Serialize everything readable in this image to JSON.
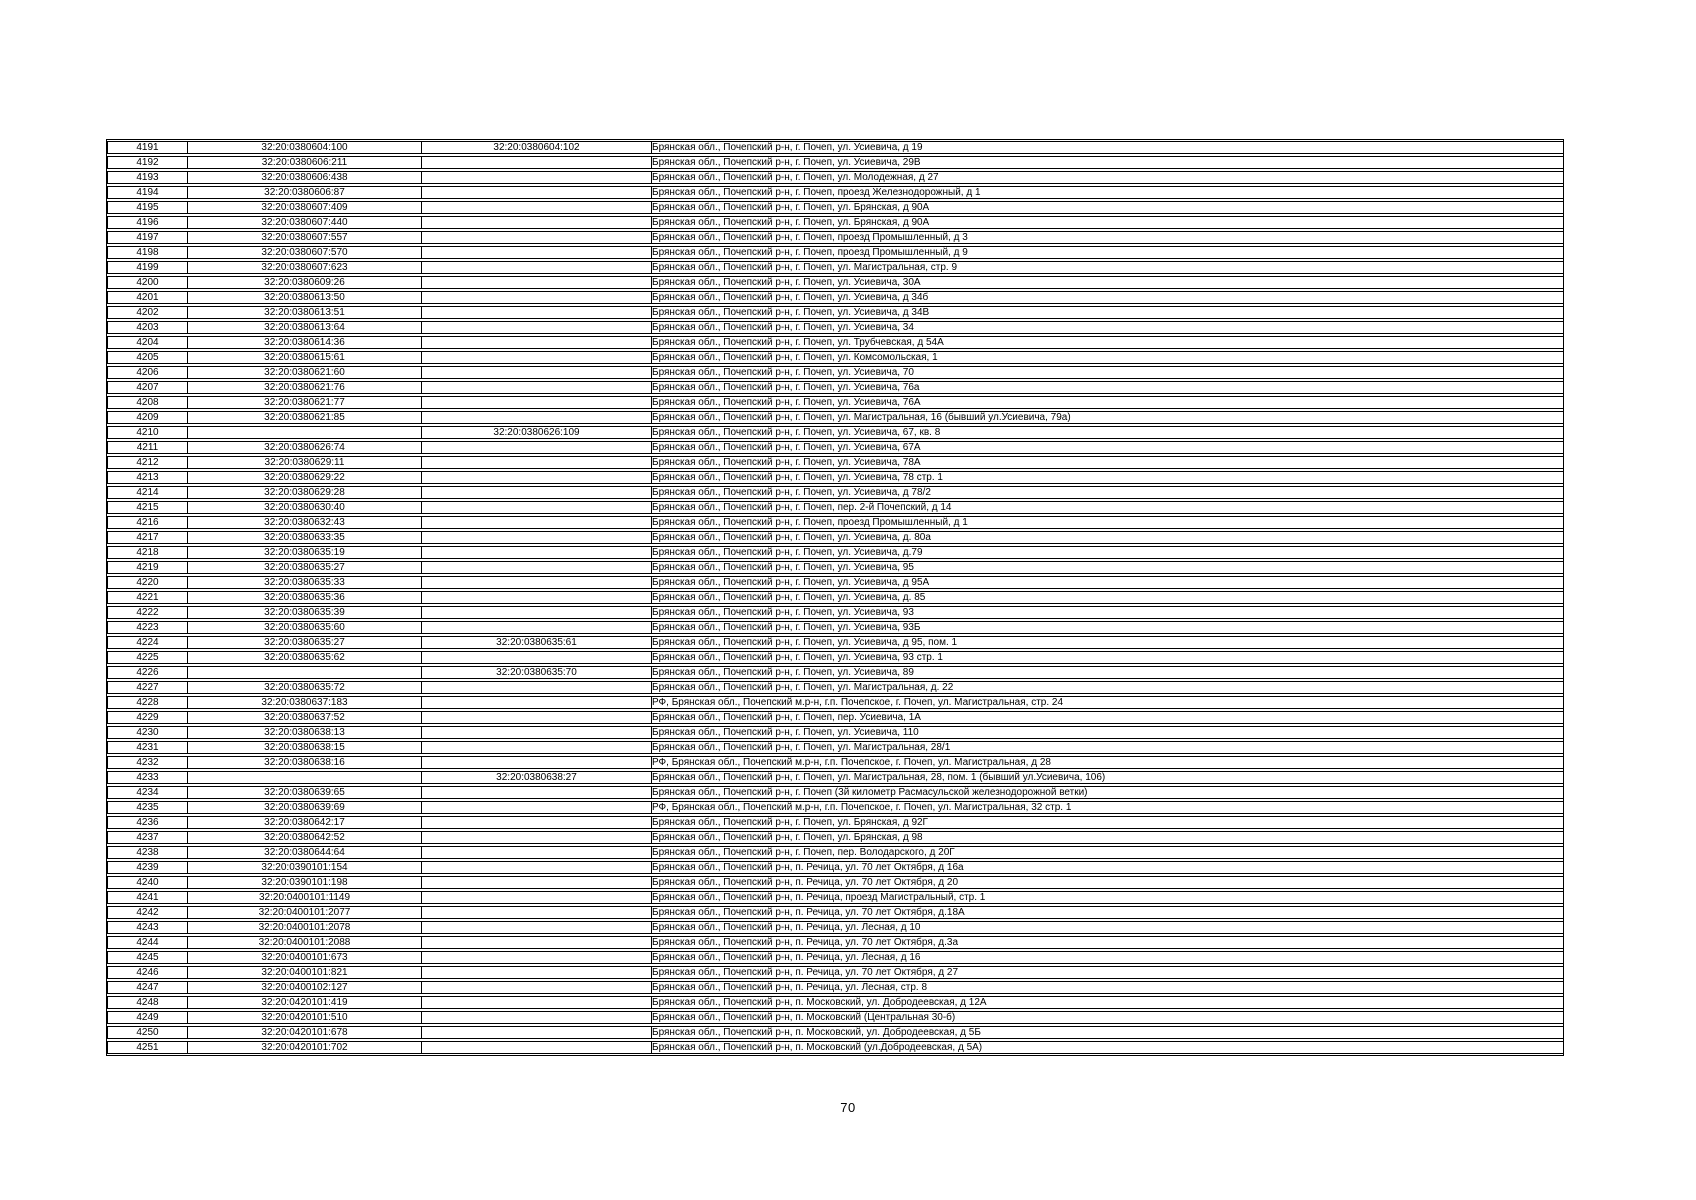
{
  "page_number": "70",
  "table": {
    "columns": [
      "number",
      "cadastral_number",
      "secondary_cadastral_number",
      "address"
    ],
    "rows": [
      [
        "4191",
        "32:20:0380604:100",
        "32:20:0380604:102",
        "Брянская обл., Почепский р-н, г. Почеп, ул. Усиевича, д 19"
      ],
      [
        "4192",
        "32:20:0380606:211",
        "",
        "Брянская обл., Почепский р-н, г. Почеп, ул. Усиевича, 29В"
      ],
      [
        "4193",
        "32:20:0380606:438",
        "",
        "Брянская обл., Почепский р-н, г. Почеп, ул. Молодежная, д 27"
      ],
      [
        "4194",
        "32:20:0380606:87",
        "",
        "Брянская обл., Почепский р-н, г. Почеп, проезд Железнодорожный, д 1"
      ],
      [
        "4195",
        "32:20:0380607:409",
        "",
        "Брянская обл., Почепский р-н, г. Почеп, ул. Брянская, д 90А"
      ],
      [
        "4196",
        "32:20:0380607:440",
        "",
        "Брянская обл., Почепский р-н, г. Почеп, ул. Брянская, д 90А"
      ],
      [
        "4197",
        "32:20:0380607:557",
        "",
        "Брянская обл., Почепский р-н, г. Почеп, проезд Промышленный, д 3"
      ],
      [
        "4198",
        "32:20:0380607:570",
        "",
        "Брянская обл., Почепский р-н, г. Почеп, проезд Промышленный, д 9"
      ],
      [
        "4199",
        "32:20:0380607:623",
        "",
        "Брянская обл., Почепский р-н, г. Почеп, ул. Магистральная, стр. 9"
      ],
      [
        "4200",
        "32:20:0380609:26",
        "",
        "Брянская обл., Почепский р-н, г. Почеп, ул. Усиевича, 30А"
      ],
      [
        "4201",
        "32:20:0380613:50",
        "",
        "Брянская обл., Почепский р-н, г. Почеп, ул. Усиевича, д 34б"
      ],
      [
        "4202",
        "32:20:0380613:51",
        "",
        "Брянская обл., Почепский р-н, г. Почеп, ул. Усиевича, д 34В"
      ],
      [
        "4203",
        "32:20:0380613:64",
        "",
        "Брянская обл., Почепский р-н, г. Почеп, ул. Усиевича, 34"
      ],
      [
        "4204",
        "32:20:0380614:36",
        "",
        "Брянская обл., Почепский р-н, г. Почеп, ул. Трубчевская, д 54А"
      ],
      [
        "4205",
        "32:20:0380615:61",
        "",
        "Брянская обл., Почепский р-н, г. Почеп, ул. Комсомольская, 1"
      ],
      [
        "4206",
        "32:20:0380621:60",
        "",
        "Брянская обл., Почепский р-н, г. Почеп, ул. Усиевича, 70"
      ],
      [
        "4207",
        "32:20:0380621:76",
        "",
        "Брянская обл., Почепский р-н, г. Почеп, ул. Усиевича, 76а"
      ],
      [
        "4208",
        "32:20:0380621:77",
        "",
        "Брянская обл., Почепский р-н, г. Почеп, ул. Усиевича, 76А"
      ],
      [
        "4209",
        "32:20:0380621:85",
        "",
        "Брянская обл., Почепский р-н, г. Почеп, ул. Магистральная, 16 (бывший ул.Усиевича, 79а)"
      ],
      [
        "4210",
        "",
        "32:20:0380626:109",
        "Брянская обл., Почепский р-н, г. Почеп, ул. Усиевича, 67, кв. 8"
      ],
      [
        "4211",
        "32:20:0380626:74",
        "",
        "Брянская обл., Почепский р-н, г. Почеп, ул. Усиевича, 67А"
      ],
      [
        "4212",
        "32:20:0380629:11",
        "",
        "Брянская обл., Почепский р-н, г. Почеп, ул. Усиевича, 78А"
      ],
      [
        "4213",
        "32:20:0380629:22",
        "",
        "Брянская обл., Почепский р-н, г. Почеп, ул. Усиевича, 78 стр. 1"
      ],
      [
        "4214",
        "32:20:0380629:28",
        "",
        "Брянская обл., Почепский р-н, г. Почеп, ул. Усиевича, д 78/2"
      ],
      [
        "4215",
        "32:20:0380630:40",
        "",
        "Брянская обл., Почепский р-н, г. Почеп, пер. 2-й Почепский, д 14"
      ],
      [
        "4216",
        "32:20:0380632:43",
        "",
        "Брянская обл., Почепский р-н, г. Почеп, проезд Промышленный, д 1"
      ],
      [
        "4217",
        "32:20:0380633:35",
        "",
        "Брянская обл., Почепский р-н, г. Почеп, ул. Усиевича, д. 80а"
      ],
      [
        "4218",
        "32:20:0380635:19",
        "",
        "Брянская обл., Почепский р-н, г. Почеп, ул. Усиевича, д.79"
      ],
      [
        "4219",
        "32:20:0380635:27",
        "",
        "Брянская обл., Почепский р-н, г. Почеп, ул. Усиевича, 95"
      ],
      [
        "4220",
        "32:20:0380635:33",
        "",
        "Брянская обл., Почепский р-н, г. Почеп, ул. Усиевича, д 95А"
      ],
      [
        "4221",
        "32:20:0380635:36",
        "",
        "Брянская обл., Почепский р-н, г. Почеп, ул. Усиевича, д. 85"
      ],
      [
        "4222",
        "32:20:0380635:39",
        "",
        "Брянская обл., Почепский р-н, г. Почеп, ул. Усиевича, 93"
      ],
      [
        "4223",
        "32:20:0380635:60",
        "",
        "Брянская обл., Почепский р-н, г. Почеп, ул. Усиевича, 93Б"
      ],
      [
        "4224",
        "32:20:0380635:27",
        "32:20:0380635:61",
        "Брянская обл., Почепский р-н, г. Почеп, ул. Усиевича, д 95, пом. 1"
      ],
      [
        "4225",
        "32:20:0380635:62",
        "",
        "Брянская обл., Почепский р-н, г. Почеп, ул. Усиевича, 93 стр. 1"
      ],
      [
        "4226",
        "",
        "32:20:0380635:70",
        "Брянская обл., Почепский р-н, г. Почеп, ул. Усиевича, 89"
      ],
      [
        "4227",
        "32:20:0380635:72",
        "",
        "Брянская обл., Почепский р-н, г. Почеп, ул. Магистральная, д. 22"
      ],
      [
        "4228",
        "32:20:0380637:183",
        "",
        "РФ, Брянская обл., Почепский м.р-н, г.п. Почепское, г. Почеп, ул. Магистральная, стр. 24"
      ],
      [
        "4229",
        "32:20:0380637:52",
        "",
        "Брянская обл., Почепский р-н, г. Почеп, пер. Усиевича, 1А"
      ],
      [
        "4230",
        "32:20:0380638:13",
        "",
        "Брянская обл., Почепский р-н, г. Почеп, ул. Усиевича, 110"
      ],
      [
        "4231",
        "32:20:0380638:15",
        "",
        "Брянская обл., Почепский р-н, г. Почеп, ул. Магистральная, 28/1"
      ],
      [
        "4232",
        "32:20:0380638:16",
        "",
        "РФ, Брянская обл., Почепский м.р-н, г.п. Почепское, г. Почеп, ул. Магистральная, д 28"
      ],
      [
        "4233",
        "",
        "32:20:0380638:27",
        "Брянская обл., Почепский р-н, г. Почеп, ул. Магистральная, 28, пом. 1 (бывший ул.Усиевича, 106)"
      ],
      [
        "4234",
        "32:20:0380639:65",
        "",
        "Брянская обл., Почепский р-н, г. Почеп (3й километр Расмасульской железнодорожной ветки)"
      ],
      [
        "4235",
        "32:20:0380639:69",
        "",
        "РФ, Брянская обл., Почепский м.р-н, г.п. Почепское, г. Почеп, ул. Магистральная, 32 стр. 1"
      ],
      [
        "4236",
        "32:20:0380642:17",
        "",
        "Брянская обл., Почепский р-н, г. Почеп, ул. Брянская, д 92Г"
      ],
      [
        "4237",
        "32:20:0380642:52",
        "",
        "Брянская обл., Почепский р-н, г. Почеп, ул. Брянская, д 98"
      ],
      [
        "4238",
        "32:20:0380644:64",
        "",
        "Брянская обл., Почепский р-н, г. Почеп, пер. Володарского, д 20Г"
      ],
      [
        "4239",
        "32:20:0390101:154",
        "",
        "Брянская обл., Почепский р-н, п. Речица, ул. 70 лет Октября, д 16а"
      ],
      [
        "4240",
        "32:20:0390101:198",
        "",
        "Брянская обл., Почепский р-н, п. Речица, ул. 70 лет Октября, д 20"
      ],
      [
        "4241",
        "32:20:0400101:1149",
        "",
        "Брянская обл., Почепский р-н, п. Речица, проезд Магистральный, стр. 1"
      ],
      [
        "4242",
        "32:20:0400101:2077",
        "",
        "Брянская обл., Почепский р-н, п. Речица, ул. 70 лет Октября, д.18А"
      ],
      [
        "4243",
        "32:20:0400101:2078",
        "",
        "Брянская обл., Почепский р-н, п. Речица, ул. Лесная, д 10"
      ],
      [
        "4244",
        "32:20:0400101:2088",
        "",
        "Брянская обл., Почепский р-н, п. Речица, ул. 70 лет Октября, д.3а"
      ],
      [
        "4245",
        "32:20:0400101:673",
        "",
        "Брянская обл., Почепский р-н, п. Речица, ул. Лесная, д 16"
      ],
      [
        "4246",
        "32:20:0400101:821",
        "",
        "Брянская обл., Почепский р-н, п. Речица, ул. 70 лет Октября, д 27"
      ],
      [
        "4247",
        "32:20:0400102:127",
        "",
        "Брянская обл., Почепский р-н, п. Речица, ул. Лесная, стр. 8"
      ],
      [
        "4248",
        "32:20:0420101:419",
        "",
        "Брянская обл., Почепский р-н, п. Московский, ул. Добродеевская, д 12А"
      ],
      [
        "4249",
        "32:20:0420101:510",
        "",
        "Брянская обл., Почепский р-н, п. Московский (Центральная 30-б)"
      ],
      [
        "4250",
        "32:20:0420101:678",
        "",
        "Брянская обл., Почепский р-н, п. Московский, ул. Добродеевская, д 5Б"
      ],
      [
        "4251",
        "32:20:0420101:702",
        "",
        "Брянская обл., Почепский р-н, п. Московский (ул.Добродеевская, д 5А)"
      ]
    ]
  }
}
